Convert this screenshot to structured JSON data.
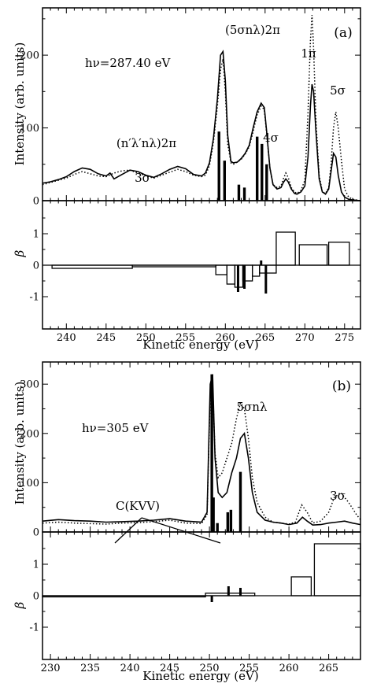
{
  "chart_data": [
    {
      "type": "line",
      "panel_label": "(a)",
      "photon_energy_label": "hν=287.40  eV",
      "xlabel": "Kinetic energy (eV)",
      "ylabel_top": "Intensity (arb. units)",
      "ylabel_bottom": "β",
      "xlim": [
        237,
        277
      ],
      "ylim_top": [
        0,
        265
      ],
      "ylim_bottom": [
        -1,
        2
      ],
      "x_ticks": [
        240,
        245,
        250,
        255,
        260,
        265,
        270,
        275
      ],
      "y_ticks_top": [
        0,
        100,
        200
      ],
      "y_ticks_bottom": [
        -1,
        0,
        1
      ],
      "annotations": [
        "(5σnλ)2π",
        "(n′λ′nλ)2π",
        "3σ",
        "4σ",
        "1π",
        "5σ"
      ],
      "series": [
        {
          "style": "solid",
          "x": [
            237,
            238,
            239,
            240,
            241,
            242,
            243,
            244,
            245,
            245.5,
            246,
            247,
            248,
            249,
            250,
            251,
            252,
            253,
            254,
            255,
            256,
            257,
            257.5,
            258,
            258.5,
            259,
            259.4,
            259.7,
            260,
            260.3,
            260.7,
            261,
            261.5,
            262,
            262.5,
            263,
            263.5,
            264,
            264.5,
            264.9,
            265.2,
            265.6,
            266,
            266.5,
            267,
            267.3,
            267.6,
            267.9,
            268.3,
            268.7,
            269,
            269.5,
            270,
            270.4,
            270.7,
            270.9,
            271.1,
            271.4,
            271.8,
            272.2,
            272.6,
            273,
            273.3,
            273.6,
            273.9,
            274.2,
            274.6,
            275,
            275.5,
            276,
            277
          ],
          "y": [
            24,
            26,
            29,
            33,
            40,
            45,
            43,
            37,
            34,
            38,
            30,
            36,
            42,
            40,
            35,
            32,
            37,
            43,
            47,
            44,
            36,
            34,
            38,
            52,
            85,
            140,
            200,
            205,
            165,
            90,
            54,
            52,
            53,
            58,
            65,
            76,
            100,
            122,
            134,
            128,
            95,
            45,
            22,
            16,
            18,
            25,
            30,
            26,
            16,
            10,
            9,
            12,
            20,
            60,
            130,
            160,
            150,
            95,
            30,
            12,
            9,
            16,
            40,
            65,
            60,
            35,
            12,
            5,
            2,
            1,
            0
          ]
        },
        {
          "style": "dotted",
          "x": [
            237,
            238,
            239,
            240,
            241,
            242,
            243,
            244,
            245,
            246,
            247,
            248,
            249,
            250,
            251,
            252,
            253,
            254,
            255,
            256,
            257,
            257.5,
            258,
            258.5,
            259,
            259.4,
            259.7,
            260,
            260.3,
            260.7,
            261,
            261.5,
            262,
            262.5,
            263,
            263.5,
            264,
            264.5,
            264.9,
            265.2,
            265.6,
            266,
            266.5,
            267,
            267.3,
            267.6,
            267.9,
            268.3,
            268.7,
            269,
            269.5,
            270,
            270.4,
            270.7,
            270.9,
            271.1,
            271.4,
            271.8,
            272.2,
            272.6,
            273,
            273.3,
            273.6,
            273.9,
            274.2,
            274.6,
            275,
            275.5,
            276,
            277
          ],
          "y": [
            22,
            25,
            28,
            31,
            36,
            40,
            37,
            34,
            33,
            38,
            41,
            42,
            38,
            34,
            31,
            35,
            39,
            43,
            40,
            35,
            33,
            35,
            48,
            80,
            130,
            180,
            195,
            150,
            78,
            52,
            50,
            53,
            57,
            64,
            74,
            95,
            118,
            130,
            125,
            92,
            45,
            22,
            18,
            20,
            30,
            38,
            32,
            18,
            12,
            10,
            14,
            28,
            120,
            220,
            255,
            210,
            110,
            35,
            12,
            10,
            18,
            50,
            100,
            122,
            100,
            55,
            16,
            5,
            2,
            0
          ]
        }
      ],
      "sticks": [
        {
          "x": 259.2,
          "y": 95
        },
        {
          "x": 259.9,
          "y": 55
        },
        {
          "x": 261.7,
          "y": 22
        },
        {
          "x": 262.4,
          "y": 18
        },
        {
          "x": 264.0,
          "y": 88
        },
        {
          "x": 264.6,
          "y": 78
        },
        {
          "x": 265.2,
          "y": 50
        }
      ],
      "beta_boxes": [
        {
          "x0": 238.2,
          "x1": 248.3,
          "beta": -0.1
        },
        {
          "x0": 248.3,
          "x1": 258.8,
          "beta": -0.05
        },
        {
          "x0": 258.8,
          "x1": 260.2,
          "beta": -0.3
        },
        {
          "x0": 260.2,
          "x1": 261.2,
          "beta": -0.6
        },
        {
          "x0": 261.2,
          "x1": 262.2,
          "beta": -0.7
        },
        {
          "x0": 262.2,
          "x1": 263.4,
          "beta": -0.5
        },
        {
          "x0": 263.4,
          "x1": 264.3,
          "beta": -0.35
        },
        {
          "x0": 264.3,
          "x1": 266.4,
          "beta": -0.25
        },
        {
          "x0": 266.4,
          "x1": 268.8,
          "beta": 1.05
        },
        {
          "x0": 269.3,
          "x1": 272.8,
          "beta": 0.65
        },
        {
          "x0": 273.0,
          "x1": 275.6,
          "beta": 0.73
        }
      ],
      "beta_sticks": [
        {
          "x": 261.6,
          "beta": -0.85
        },
        {
          "x": 262.4,
          "beta": -0.75
        },
        {
          "x": 264.5,
          "beta": 0.15
        },
        {
          "x": 265.1,
          "beta": -0.9
        }
      ]
    },
    {
      "type": "line",
      "panel_label": "(b)",
      "photon_energy_label": "hν=305  eV",
      "xlabel": "Kinetic energy (eV)",
      "ylabel_top": "Intensity (arb. units)",
      "ylabel_bottom": "β",
      "xlim": [
        229,
        269
      ],
      "ylim_top": [
        0,
        345
      ],
      "ylim_bottom": [
        -1,
        2
      ],
      "x_ticks": [
        230,
        235,
        240,
        245,
        250,
        255,
        260,
        265
      ],
      "y_ticks_top": [
        0,
        100,
        200,
        300
      ],
      "y_ticks_bottom": [
        -1,
        0,
        1
      ],
      "annotations": [
        "5σnλ",
        "C(KVV)",
        "3σ"
      ],
      "series": [
        {
          "style": "solid",
          "x": [
            229,
            231,
            233,
            235,
            237,
            239,
            241,
            243,
            245,
            247,
            249,
            249.7,
            250.1,
            250.4,
            250.7,
            251.1,
            251.6,
            252.2,
            252.8,
            253.4,
            253.9,
            254.4,
            254.9,
            255.4,
            256,
            257,
            258,
            259,
            260,
            261,
            261.7,
            262.3,
            263,
            264,
            265,
            266,
            267,
            268,
            269
          ],
          "y": [
            22,
            25,
            23,
            22,
            20,
            21,
            22,
            24,
            27,
            22,
            20,
            40,
            300,
            320,
            150,
            80,
            70,
            80,
            120,
            150,
            190,
            200,
            150,
            80,
            40,
            24,
            20,
            18,
            15,
            18,
            30,
            22,
            14,
            15,
            18,
            20,
            22,
            18,
            15
          ]
        },
        {
          "style": "dotted",
          "x": [
            229,
            231,
            233,
            235,
            237,
            239,
            241,
            243,
            245,
            247,
            249,
            249.7,
            250.1,
            250.4,
            250.7,
            251.1,
            251.6,
            252.2,
            252.8,
            253.4,
            253.9,
            254.4,
            254.9,
            255.4,
            256,
            257,
            258,
            259,
            260,
            260.8,
            261.6,
            262.3,
            263,
            264,
            265,
            265.7,
            266.5,
            267.5,
            268.5,
            269
          ],
          "y": [
            18,
            20,
            18,
            17,
            16,
            18,
            19,
            21,
            24,
            18,
            17,
            35,
            280,
            300,
            160,
            110,
            120,
            150,
            180,
            230,
            262,
            250,
            190,
            110,
            60,
            30,
            20,
            18,
            16,
            20,
            55,
            40,
            18,
            22,
            40,
            70,
            80,
            60,
            35,
            25
          ]
        }
      ],
      "sticks": [
        {
          "x": 250.3,
          "y": 320
        },
        {
          "x": 250.5,
          "y": 70
        },
        {
          "x": 251.0,
          "y": 18
        },
        {
          "x": 252.3,
          "y": 40
        },
        {
          "x": 252.7,
          "y": 45
        },
        {
          "x": 253.9,
          "y": 122
        }
      ],
      "beta_boxes": [
        {
          "x0": 229.0,
          "x1": 249.5,
          "beta": 0.0
        },
        {
          "x0": 249.5,
          "x1": 255.7,
          "beta": 0.08
        },
        {
          "x0": 260.3,
          "x1": 262.8,
          "beta": 0.6
        },
        {
          "x0": 263.2,
          "x1": 269.0,
          "beta": 1.65
        }
      ],
      "beta_sticks": [
        {
          "x": 250.3,
          "beta": -0.2
        },
        {
          "x": 252.4,
          "beta": 0.3
        },
        {
          "x": 253.9,
          "beta": 0.25
        }
      ]
    }
  ]
}
